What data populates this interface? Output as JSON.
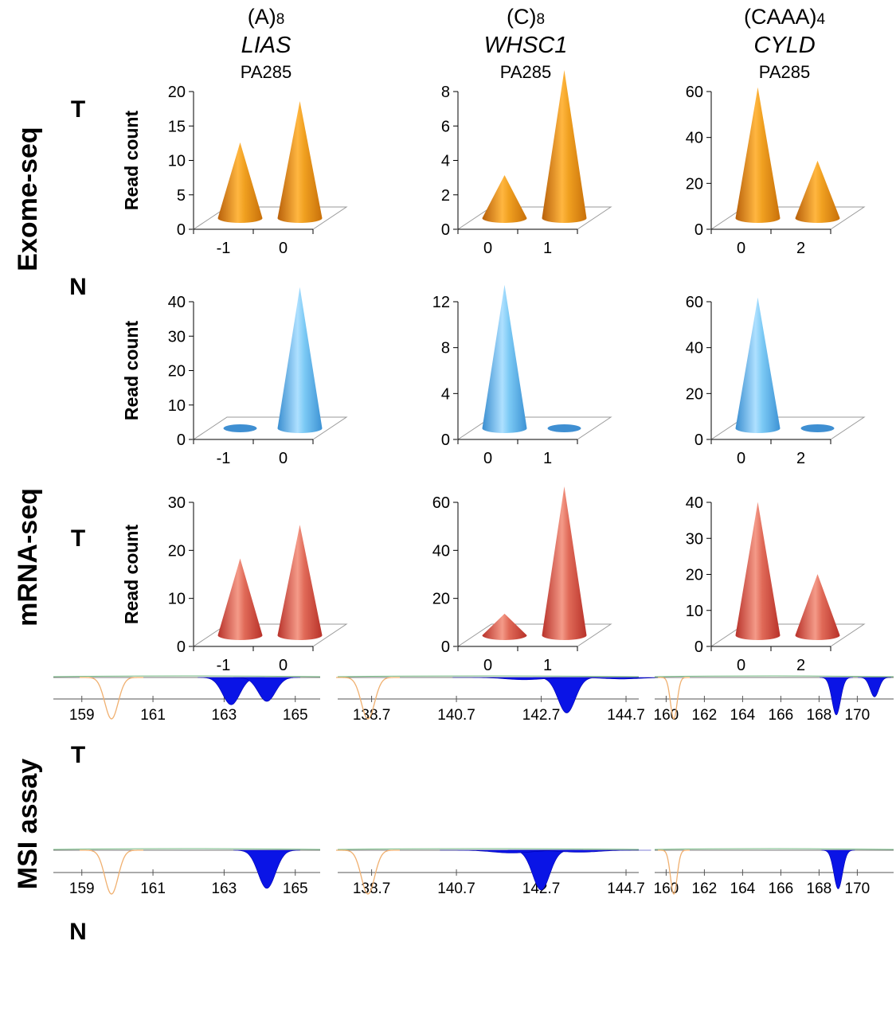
{
  "row_labels": {
    "exome": "Exome-seq",
    "mrna": "mRNA-seq",
    "msi": "MSI assay"
  },
  "tn_labels": {
    "exome_t": "T",
    "exome_n": "N",
    "mrna_t": "T",
    "msi_t": "T",
    "msi_n": "N"
  },
  "columns": [
    {
      "repeat_base": "(A)",
      "repeat_sub": "8",
      "gene": "LIAS",
      "sample": "PA285"
    },
    {
      "repeat_base": "(C)",
      "repeat_sub": "8",
      "gene": "WHSC1",
      "sample": "PA285"
    },
    {
      "repeat_base": "(CAAA)",
      "repeat_sub": "4",
      "gene": "CYLD",
      "sample": "PA285"
    }
  ],
  "colors": {
    "exome_tumor": "#e8860f",
    "exome_normal": "#4fb3ea",
    "mrna_tumor": "#d54a38",
    "msi_peak": "#0a14e6",
    "msi_size_std": "#f0b070"
  },
  "chart_data": [
    {
      "type": "bar",
      "panel": "exome-T-LIAS",
      "ylabel": "Read count",
      "categories": [
        "-1",
        "0"
      ],
      "values": [
        11,
        17
      ],
      "ylim": [
        0,
        20
      ],
      "yticks": [
        0,
        5,
        10,
        15,
        20
      ]
    },
    {
      "type": "bar",
      "panel": "exome-T-WHSC1",
      "ylabel": "",
      "categories": [
        "0",
        "1"
      ],
      "values": [
        2.5,
        8.6
      ],
      "ylim": [
        0,
        8
      ],
      "yticks": [
        0,
        2,
        4,
        6,
        8
      ]
    },
    {
      "type": "bar",
      "panel": "exome-T-CYLD",
      "ylabel": "",
      "categories": [
        "0",
        "2"
      ],
      "values": [
        57,
        25
      ],
      "ylim": [
        0,
        60
      ],
      "yticks": [
        0,
        20,
        40,
        60
      ]
    },
    {
      "type": "bar",
      "panel": "exome-N-LIAS",
      "ylabel": "Read count",
      "categories": [
        "-1",
        "0"
      ],
      "values": [
        0,
        41
      ],
      "ylim": [
        0,
        40
      ],
      "yticks": [
        0,
        10,
        20,
        30,
        40
      ]
    },
    {
      "type": "bar",
      "panel": "exome-N-WHSC1",
      "ylabel": "",
      "categories": [
        "0",
        "1"
      ],
      "values": [
        12.5,
        0
      ],
      "ylim": [
        0,
        12
      ],
      "yticks": [
        0,
        4,
        8,
        12
      ]
    },
    {
      "type": "bar",
      "panel": "exome-N-CYLD",
      "ylabel": "",
      "categories": [
        "0",
        "2"
      ],
      "values": [
        57,
        0
      ],
      "ylim": [
        0,
        60
      ],
      "yticks": [
        0,
        20,
        40,
        60
      ]
    },
    {
      "type": "bar",
      "panel": "mrna-T-LIAS",
      "ylabel": "Read count",
      "categories": [
        "-1",
        "0"
      ],
      "values": [
        16,
        23
      ],
      "ylim": [
        0,
        30
      ],
      "yticks": [
        0,
        10,
        20,
        30
      ]
    },
    {
      "type": "bar",
      "panel": "mrna-T-WHSC1",
      "ylabel": "",
      "categories": [
        "0",
        "1"
      ],
      "values": [
        9,
        62
      ],
      "ylim": [
        0,
        60
      ],
      "yticks": [
        0,
        20,
        40,
        60
      ]
    },
    {
      "type": "bar",
      "panel": "mrna-T-CYLD",
      "ylabel": "",
      "categories": [
        "0",
        "2"
      ],
      "values": [
        37,
        17
      ],
      "ylim": [
        0,
        40
      ],
      "yticks": [
        0,
        10,
        20,
        30,
        40
      ]
    },
    {
      "type": "line",
      "panel": "msi-T-LIAS",
      "ticks": [
        "159",
        "161",
        "163",
        "165"
      ],
      "xlim": [
        158.2,
        165.7
      ],
      "peaks": [
        {
          "x": 163.2,
          "h": 0.73
        },
        {
          "x": 164.2,
          "h": 0.64
        }
      ]
    },
    {
      "type": "line",
      "panel": "msi-T-WHSC1",
      "ticks": [
        "138.7",
        "140.7",
        "142.7",
        "144.7"
      ],
      "xlim": [
        137.9,
        145.0
      ],
      "peaks": [
        {
          "x": 143.3,
          "h": 0.95
        },
        {
          "x": 142.3,
          "h": 0.06
        },
        {
          "x": 144.6,
          "h": 0.04
        }
      ]
    },
    {
      "type": "line",
      "panel": "msi-T-CYLD",
      "ticks": [
        "160",
        "162",
        "164",
        "166",
        "168",
        "170"
      ],
      "xlim": [
        159.4,
        171.9
      ],
      "peaks": [
        {
          "x": 168.9,
          "h": 1.0
        },
        {
          "x": 170.9,
          "h": 0.52
        }
      ]
    },
    {
      "type": "line",
      "panel": "msi-N-LIAS",
      "ticks": [
        "159",
        "161",
        "163",
        "165"
      ],
      "xlim": [
        158.2,
        165.7
      ],
      "peaks": [
        {
          "x": 164.2,
          "h": 0.96
        }
      ]
    },
    {
      "type": "line",
      "panel": "msi-N-WHSC1",
      "ticks": [
        "138.7",
        "140.7",
        "142.7",
        "144.7"
      ],
      "xlim": [
        137.9,
        145.0
      ],
      "peaks": [
        {
          "x": 142.7,
          "h": 1.0
        },
        {
          "x": 142.0,
          "h": 0.07
        },
        {
          "x": 143.6,
          "h": 0.05
        }
      ]
    },
    {
      "type": "line",
      "panel": "msi-N-CYLD",
      "ticks": [
        "160",
        "162",
        "164",
        "166",
        "168",
        "170"
      ],
      "xlim": [
        159.4,
        171.9
      ],
      "peaks": [
        {
          "x": 169.0,
          "h": 0.97
        }
      ]
    }
  ]
}
